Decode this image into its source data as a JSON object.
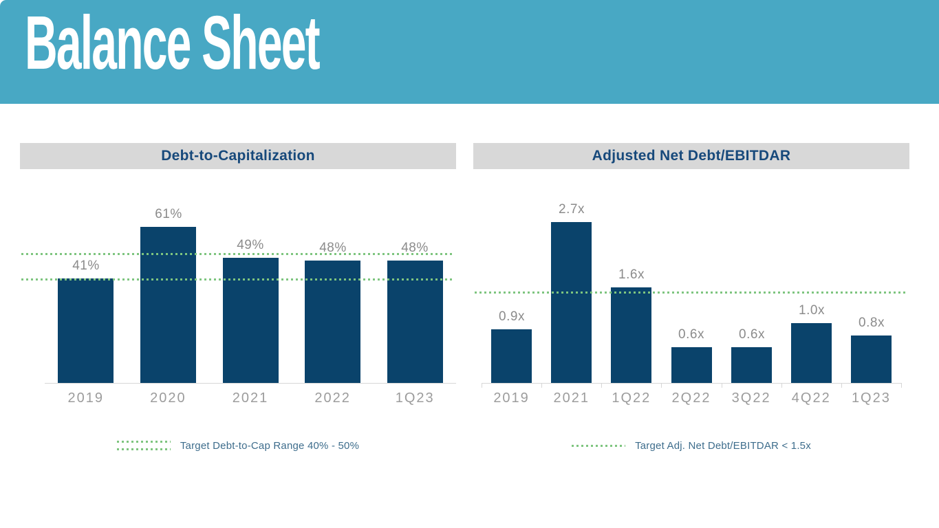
{
  "header": {
    "title": "Balance Sheet"
  },
  "colors": {
    "background": "#FFFFFF",
    "header_bg": "#48A8C4",
    "header_text": "#FFFFFF",
    "panel_title_bg": "#D8D8D8",
    "panel_title_text": "#17497B",
    "bar": "#0A436B",
    "target_green": "#7EC57F",
    "value_label": "#8B8B8B",
    "axis_label": "#9C9C9C",
    "axis_line": "#D6D6D6",
    "legend_text": "#3E6D8C"
  },
  "chart_data": [
    {
      "type": "bar",
      "title": "Debt-to-Capitalization",
      "categories": [
        "2019",
        "2020",
        "2021",
        "2022",
        "1Q23"
      ],
      "values": [
        41,
        61,
        49,
        48,
        48
      ],
      "value_labels": [
        "41%",
        "61%",
        "49%",
        "48%",
        "48%"
      ],
      "ylim": [
        0,
        70
      ],
      "target_lines": [
        50,
        40
      ],
      "legend_label": "Target Debt-to-Cap Range 40% - 50%",
      "grid": false,
      "axis_ticks": false,
      "legend_position": "bottom",
      "xlabel": "",
      "ylabel": ""
    },
    {
      "type": "bar",
      "title": "Adjusted Net Debt/EBITDAR",
      "categories": [
        "2019",
        "2021",
        "1Q22",
        "2Q22",
        "3Q22",
        "4Q22",
        "1Q23"
      ],
      "values": [
        0.9,
        2.7,
        1.6,
        0.6,
        0.6,
        1.0,
        0.8
      ],
      "value_labels": [
        "0.9x",
        "2.7x",
        "1.6x",
        "0.6x",
        "0.6x",
        "1.0x",
        "0.8x"
      ],
      "ylim": [
        0,
        3
      ],
      "target_lines": [
        1.5
      ],
      "legend_label": "Target Adj. Net Debt/EBITDAR < 1.5x",
      "grid": false,
      "axis_ticks": true,
      "legend_position": "bottom",
      "xlabel": "",
      "ylabel": ""
    }
  ]
}
